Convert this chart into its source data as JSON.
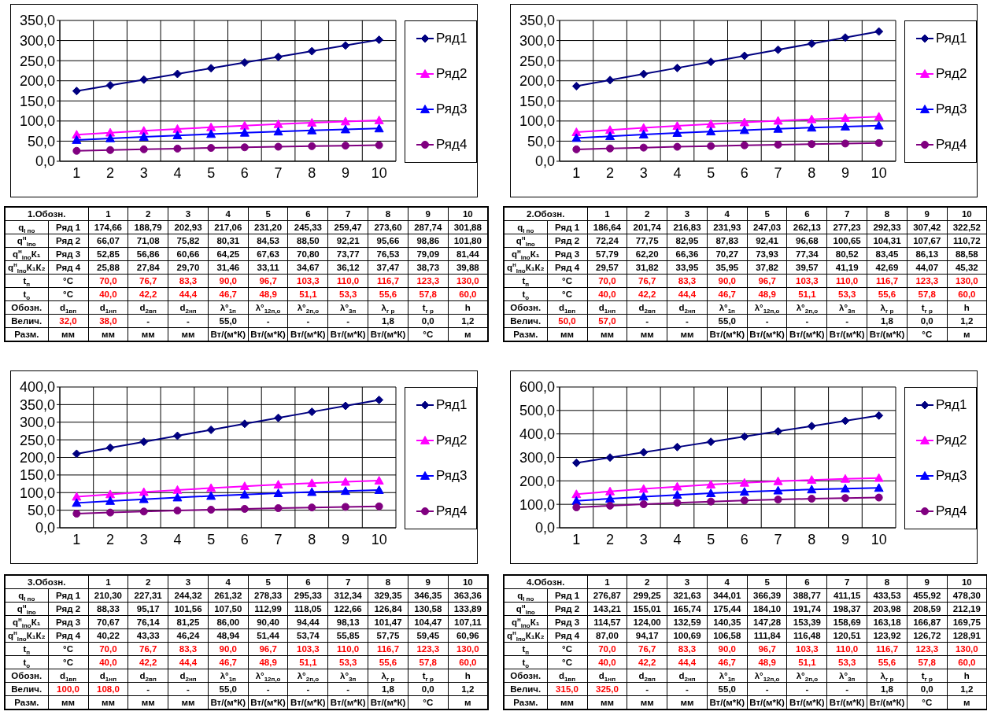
{
  "chart_data": [
    {
      "type": "line",
      "categories": [
        "1",
        "2",
        "3",
        "4",
        "5",
        "6",
        "7",
        "8",
        "9",
        "10"
      ],
      "series": [
        {
          "name": "Ряд1",
          "color": "#000080",
          "marker": "diamond",
          "values": [
            174.66,
            188.79,
            202.93,
            217.06,
            231.2,
            245.33,
            259.47,
            273.6,
            287.74,
            301.88
          ]
        },
        {
          "name": "Ряд2",
          "color": "#ff00ff",
          "marker": "triangle",
          "values": [
            66.07,
            71.08,
            75.82,
            80.31,
            84.53,
            88.5,
            92.21,
            95.66,
            98.86,
            101.8
          ]
        },
        {
          "name": "Ряд3",
          "color": "#0000ff",
          "marker": "triangle",
          "values": [
            52.85,
            56.86,
            60.66,
            64.25,
            67.63,
            70.8,
            73.77,
            76.53,
            79.09,
            81.44
          ]
        },
        {
          "name": "Ряд4",
          "color": "#800080",
          "marker": "circle",
          "values": [
            25.88,
            27.84,
            29.7,
            31.46,
            33.11,
            34.67,
            36.12,
            37.47,
            38.73,
            39.88
          ]
        }
      ],
      "ylim": [
        0,
        350
      ],
      "yticks": [
        {
          "value": 0,
          "label": "0,0"
        },
        {
          "value": 50,
          "label": "50,0"
        },
        {
          "value": 100,
          "label": "100,0"
        },
        {
          "value": 150,
          "label": "150,0"
        },
        {
          "value": 200,
          "label": "200,0"
        },
        {
          "value": 250,
          "label": "250,0"
        },
        {
          "value": 300,
          "label": "300,0"
        },
        {
          "value": 350,
          "label": "350,0"
        }
      ],
      "grid": true,
      "legend": "right",
      "annotations": [
        "1.Обозн.",
        "q$_{l по}$",
        "Ряд 1",
        "174,66",
        "188,79",
        "202,93",
        "217,06",
        "231,20",
        "245,33",
        "259,47",
        "273,60",
        "287,74",
        "301,88",
        "q$^{н}$$_{lпо}$",
        "Ряд 2",
        "66,07",
        "71,08",
        "75,82",
        "80,31",
        "84,53",
        "88,50",
        "92,21",
        "95,66",
        "98,86",
        "101,80",
        "q$^{н}$$_{lпо}$К₁",
        "Ряд 3",
        "52,85",
        "56,86",
        "60,66",
        "64,25",
        "67,63",
        "70,80",
        "73,77",
        "76,53",
        "79,09",
        "81,44",
        "q$^{н}$$_{lпо}$К₁К₂",
        "Ряд 4",
        "25,88",
        "27,84",
        "29,70",
        "31,46",
        "33,11",
        "34,67",
        "36,12",
        "37,47",
        "38,73",
        "39,88",
        "t$_{п}$",
        "°C",
        "70,0",
        "76,7",
        "83,3",
        "90,0",
        "96,7",
        "103,3",
        "110,0",
        "116,7",
        "123,3",
        "130,0",
        "t$_{о}$",
        "°C",
        "40,0",
        "42,2",
        "44,4",
        "46,7",
        "48,9",
        "51,1",
        "53,3",
        "55,6",
        "57,8",
        "60,0",
        "Обозн.",
        "d$_{1вп}$",
        "d$_{1нп}$",
        "d$_{2вп}$",
        "d$_{2нп}$",
        "λ°$_{1п}$",
        "λ°$_{12п,о}$",
        "λ°$_{2п,о}$",
        "λ°$_{3п}$",
        "λ$_{г р}$",
        "t$_{г р}$",
        "h",
        "Велич.",
        "32,0",
        "38,0",
        "-",
        "-",
        "55,0",
        "-",
        "-",
        "-",
        "1,8",
        "0,0",
        "1,2",
        "Разм.",
        "мм",
        "мм",
        "мм",
        "мм",
        "Вт/(м*К)",
        "Вт/(м*К)",
        "Вт/(м*К)",
        "Вт/(м*К)",
        "Вт/(м*К)",
        "°C",
        "м"
      ]
    },
    {
      "type": "line",
      "categories": [
        "1",
        "2",
        "3",
        "4",
        "5",
        "6",
        "7",
        "8",
        "9",
        "10"
      ],
      "series": [
        {
          "name": "Ряд1",
          "color": "#000080",
          "marker": "diamond",
          "values": [
            186.64,
            201.74,
            216.83,
            231.93,
            247.03,
            262.13,
            277.23,
            292.33,
            307.42,
            322.52
          ]
        },
        {
          "name": "Ряд2",
          "color": "#ff00ff",
          "marker": "triangle",
          "values": [
            72.24,
            77.75,
            82.95,
            87.83,
            92.41,
            96.68,
            100.65,
            104.31,
            107.67,
            110.72
          ]
        },
        {
          "name": "Ряд3",
          "color": "#0000ff",
          "marker": "triangle",
          "values": [
            57.79,
            62.2,
            66.36,
            70.27,
            73.93,
            77.34,
            80.52,
            83.45,
            86.13,
            88.58
          ]
        },
        {
          "name": "Ряд4",
          "color": "#800080",
          "marker": "circle",
          "values": [
            29.57,
            31.82,
            33.95,
            35.95,
            37.82,
            39.57,
            41.19,
            42.69,
            44.07,
            45.32
          ]
        }
      ],
      "ylim": [
        0,
        350
      ],
      "yticks": [
        {
          "value": 0,
          "label": "0,0"
        },
        {
          "value": 50,
          "label": "50,0"
        },
        {
          "value": 100,
          "label": "100,0"
        },
        {
          "value": 150,
          "label": "150,0"
        },
        {
          "value": 200,
          "label": "200,0"
        },
        {
          "value": 250,
          "label": "250,0"
        },
        {
          "value": 300,
          "label": "300,0"
        },
        {
          "value": 350,
          "label": "350,0"
        }
      ],
      "grid": true,
      "legend": "right",
      "annotations": [
        "2.Обозн.",
        "q$_{l по}$",
        "Ряд 1",
        "186,64",
        "201,74",
        "216,83",
        "231,93",
        "247,03",
        "262,13",
        "277,23",
        "292,33",
        "307,42",
        "322,52",
        "q$^{н}$$_{lпо}$",
        "Ряд 2",
        "72,24",
        "77,75",
        "82,95",
        "87,83",
        "92,41",
        "96,68",
        "100,65",
        "104,31",
        "107,67",
        "110,72",
        "q$^{н}$$_{lпо}$К₁",
        "Ряд 3",
        "57,79",
        "62,20",
        "66,36",
        "70,27",
        "73,93",
        "77,34",
        "80,52",
        "83,45",
        "86,13",
        "88,58",
        "q$^{н}$$_{lпо}$К₁К₂",
        "Ряд 4",
        "29,57",
        "31,82",
        "33,95",
        "35,95",
        "37,82",
        "39,57",
        "41,19",
        "42,69",
        "44,07",
        "45,32",
        "t$_{п}$",
        "°C",
        "70,0",
        "76,7",
        "83,3",
        "90,0",
        "96,7",
        "103,3",
        "110,0",
        "116,7",
        "123,3",
        "130,0",
        "t$_{о}$",
        "°C",
        "40,0",
        "42,2",
        "44,4",
        "46,7",
        "48,9",
        "51,1",
        "53,3",
        "55,6",
        "57,8",
        "60,0",
        "Обозн.",
        "d$_{1вп}$",
        "d$_{1нп}$",
        "d$_{2вп}$",
        "d$_{2нп}$",
        "λ°$_{1п}$",
        "λ°$_{12п,о}$",
        "λ°$_{2п,о}$",
        "λ°$_{3п}$",
        "λ$_{г р}$",
        "t$_{г р}$",
        "h",
        "Велич.",
        "50,0",
        "57,0",
        "-",
        "-",
        "55,0",
        "-",
        "-",
        "-",
        "1,8",
        "0,0",
        "1,2",
        "Разм.",
        "мм",
        "мм",
        "мм",
        "мм",
        "Вт/(м*К)",
        "Вт/(м*К)",
        "Вт/(м*К)",
        "Вт/(м*К)",
        "Вт/(м*К)",
        "°C",
        "м"
      ]
    },
    {
      "type": "line",
      "categories": [
        "1",
        "2",
        "3",
        "4",
        "5",
        "6",
        "7",
        "8",
        "9",
        "10"
      ],
      "series": [
        {
          "name": "Ряд1",
          "color": "#000080",
          "marker": "diamond",
          "values": [
            210.3,
            227.31,
            244.32,
            261.32,
            278.33,
            295.33,
            312.34,
            329.35,
            346.35,
            363.36
          ]
        },
        {
          "name": "Ряд2",
          "color": "#ff00ff",
          "marker": "triangle",
          "values": [
            88.33,
            95.17,
            101.56,
            107.5,
            112.99,
            118.05,
            122.66,
            126.84,
            130.58,
            133.89
          ]
        },
        {
          "name": "Ряд3",
          "color": "#0000ff",
          "marker": "triangle",
          "values": [
            70.67,
            76.14,
            81.25,
            86.0,
            90.4,
            94.44,
            98.13,
            101.47,
            104.47,
            107.11
          ]
        },
        {
          "name": "Ряд4",
          "color": "#800080",
          "marker": "circle",
          "values": [
            40.22,
            43.33,
            46.24,
            48.94,
            51.44,
            53.74,
            55.85,
            57.75,
            59.45,
            60.96
          ]
        }
      ],
      "ylim": [
        0,
        400
      ],
      "yticks": [
        {
          "value": 0,
          "label": "0,0"
        },
        {
          "value": 50,
          "label": "50,0"
        },
        {
          "value": 100,
          "label": "100,0"
        },
        {
          "value": 150,
          "label": "150,0"
        },
        {
          "value": 200,
          "label": "200,0"
        },
        {
          "value": 250,
          "label": "250,0"
        },
        {
          "value": 300,
          "label": "300,0"
        },
        {
          "value": 350,
          "label": "350,0"
        },
        {
          "value": 400,
          "label": "400,0"
        }
      ],
      "grid": true,
      "legend": "right",
      "annotations": [
        "3.Обозн.",
        "q$_{l по}$",
        "Ряд 1",
        "210,30",
        "227,31",
        "244,32",
        "261,32",
        "278,33",
        "295,33",
        "312,34",
        "329,35",
        "346,35",
        "363,36",
        "q$^{н}$$_{lпо}$",
        "Ряд 2",
        "88,33",
        "95,17",
        "101,56",
        "107,50",
        "112,99",
        "118,05",
        "122,66",
        "126,84",
        "130,58",
        "133,89",
        "q$^{н}$$_{lпо}$К₁",
        "Ряд 3",
        "70,67",
        "76,14",
        "81,25",
        "86,00",
        "90,40",
        "94,44",
        "98,13",
        "101,47",
        "104,47",
        "107,11",
        "q$^{н}$$_{lпо}$К₁К₂",
        "Ряд 4",
        "40,22",
        "43,33",
        "46,24",
        "48,94",
        "51,44",
        "53,74",
        "55,85",
        "57,75",
        "59,45",
        "60,96",
        "t$_{п}$",
        "°C",
        "70,0",
        "76,7",
        "83,3",
        "90,0",
        "96,7",
        "103,3",
        "110,0",
        "116,7",
        "123,3",
        "130,0",
        "t$_{о}$",
        "°C",
        "40,0",
        "42,2",
        "44,4",
        "46,7",
        "48,9",
        "51,1",
        "53,3",
        "55,6",
        "57,8",
        "60,0",
        "Обозн.",
        "d$_{1вп}$",
        "d$_{1нп}$",
        "d$_{2вп}$",
        "d$_{2нп}$",
        "λ°$_{1п}$",
        "λ°$_{12п,о}$",
        "λ°$_{2п,о}$",
        "λ°$_{3п}$",
        "λ$_{г р}$",
        "t$_{г р}$",
        "h",
        "Велич.",
        "100,0",
        "108,0",
        "-",
        "-",
        "55,0",
        "-",
        "-",
        "-",
        "1,8",
        "0,0",
        "1,2",
        "Разм.",
        "мм",
        "мм",
        "мм",
        "мм",
        "Вт/(м*К)",
        "Вт/(м*К)",
        "Вт/(м*К)",
        "Вт/(м*К)",
        "Вт/(м*К)",
        "°C",
        "м"
      ]
    },
    {
      "type": "line",
      "categories": [
        "1",
        "2",
        "3",
        "4",
        "5",
        "6",
        "7",
        "8",
        "9",
        "10"
      ],
      "series": [
        {
          "name": "Ряд1",
          "color": "#000080",
          "marker": "diamond",
          "values": [
            276.87,
            299.25,
            321.63,
            344.01,
            366.39,
            388.77,
            411.15,
            433.53,
            455.92,
            478.3
          ]
        },
        {
          "name": "Ряд2",
          "color": "#ff00ff",
          "marker": "triangle",
          "values": [
            143.21,
            155.01,
            165.74,
            175.44,
            184.1,
            191.74,
            198.37,
            203.98,
            208.59,
            212.19
          ]
        },
        {
          "name": "Ряд3",
          "color": "#0000ff",
          "marker": "triangle",
          "values": [
            114.57,
            124.0,
            132.59,
            140.35,
            147.28,
            153.39,
            158.69,
            163.18,
            166.87,
            169.75
          ]
        },
        {
          "name": "Ряд4",
          "color": "#800080",
          "marker": "circle",
          "values": [
            87.0,
            94.17,
            100.69,
            106.58,
            111.84,
            116.48,
            120.51,
            123.92,
            126.72,
            128.91
          ]
        }
      ],
      "ylim": [
        0,
        600
      ],
      "yticks": [
        {
          "value": 0,
          "label": "0,0"
        },
        {
          "value": 100,
          "label": "100,0"
        },
        {
          "value": 200,
          "label": "200,0"
        },
        {
          "value": 300,
          "label": "300,0"
        },
        {
          "value": 400,
          "label": "400,0"
        },
        {
          "value": 500,
          "label": "500,0"
        },
        {
          "value": 600,
          "label": "600,0"
        }
      ],
      "grid": true,
      "legend": "right",
      "annotations": [
        "4.Обозн.",
        "q$_{l по}$",
        "Ряд 1",
        "276,87",
        "299,25",
        "321,63",
        "344,01",
        "366,39",
        "388,77",
        "411,15",
        "433,53",
        "455,92",
        "478,30",
        "q$^{н}$$_{lпо}$",
        "Ряд 2",
        "143,21",
        "155,01",
        "165,74",
        "175,44",
        "184,10",
        "191,74",
        "198,37",
        "203,98",
        "208,59",
        "212,19",
        "q$^{н}$$_{lпо}$К₁",
        "Ряд 3",
        "114,57",
        "124,00",
        "132,59",
        "140,35",
        "147,28",
        "153,39",
        "158,69",
        "163,18",
        "166,87",
        "169,75",
        "q$^{н}$$_{lпо}$К₁К₂",
        "Ряд 4",
        "87,00",
        "94,17",
        "100,69",
        "106,58",
        "111,84",
        "116,48",
        "120,51",
        "123,92",
        "126,72",
        "128,91",
        "t$_{п}$",
        "°C",
        "70,0",
        "76,7",
        "83,3",
        "90,0",
        "96,7",
        "103,3",
        "110,0",
        "116,7",
        "123,3",
        "130,0",
        "t$_{о}$",
        "°C",
        "40,0",
        "42,2",
        "44,4",
        "46,7",
        "48,9",
        "51,1",
        "53,3",
        "55,6",
        "57,8",
        "60,0",
        "Обозн.",
        "d$_{1вп}$",
        "d$_{1нп}$",
        "d$_{2вп}$",
        "d$_{2нп}$",
        "λ°$_{1п}$",
        "λ°$_{12п,о}$",
        "λ°$_{2п,о}$",
        "λ°$_{3п}$",
        "λ$_{г р}$",
        "t$_{г р}$",
        "h",
        "Велич.",
        "315,0",
        "325,0",
        "-",
        "-",
        "55,0",
        "-",
        "-",
        "-",
        "1,8",
        "0,0",
        "1,2",
        "Разм.",
        "мм",
        "мм",
        "мм",
        "мм",
        "Вт/(м*К)",
        "Вт/(м*К)",
        "Вт/(м*К)",
        "Вт/(м*К)",
        "Вт/(м*К)",
        "°C",
        "м"
      ]
    }
  ]
}
